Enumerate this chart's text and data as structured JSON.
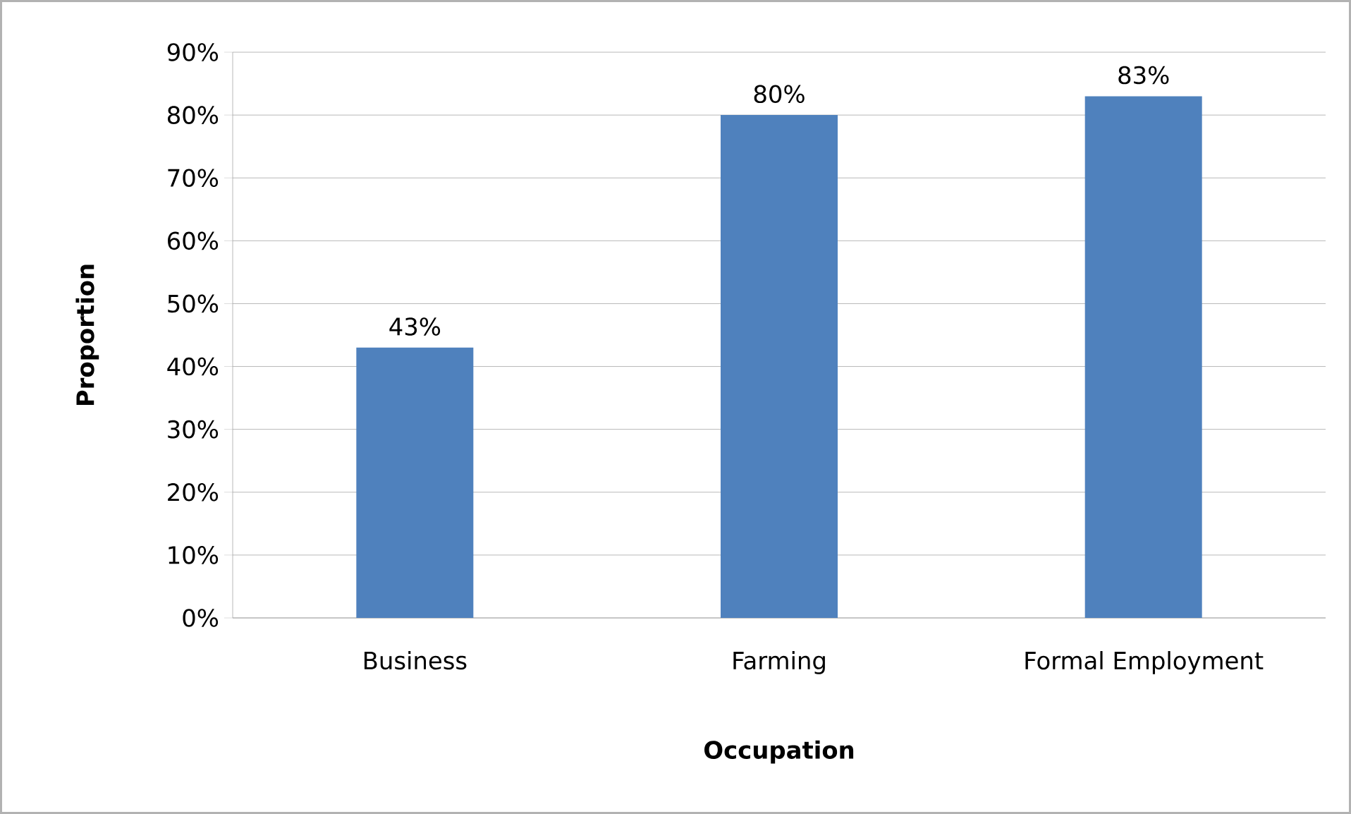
{
  "chart_data": {
    "type": "bar",
    "xlabel": "Occupation",
    "ylabel": "Proportion",
    "categories": [
      "Business",
      "Farming",
      "Formal Employment"
    ],
    "values": [
      43,
      80,
      83
    ],
    "value_labels": [
      "43%",
      "80%",
      "83%"
    ],
    "color": "#4f81bd",
    "ylim": [
      0,
      90
    ],
    "yticks": [
      {
        "value": 0,
        "label": "0%"
      },
      {
        "value": 10,
        "label": "10%"
      },
      {
        "value": 20,
        "label": "20%"
      },
      {
        "value": 30,
        "label": "30%"
      },
      {
        "value": 40,
        "label": "40%"
      },
      {
        "value": 50,
        "label": "50%"
      },
      {
        "value": 60,
        "label": "60%"
      },
      {
        "value": 70,
        "label": "70%"
      },
      {
        "value": 80,
        "label": "80%"
      },
      {
        "value": 90,
        "label": "90%"
      }
    ],
    "grid": "y"
  }
}
